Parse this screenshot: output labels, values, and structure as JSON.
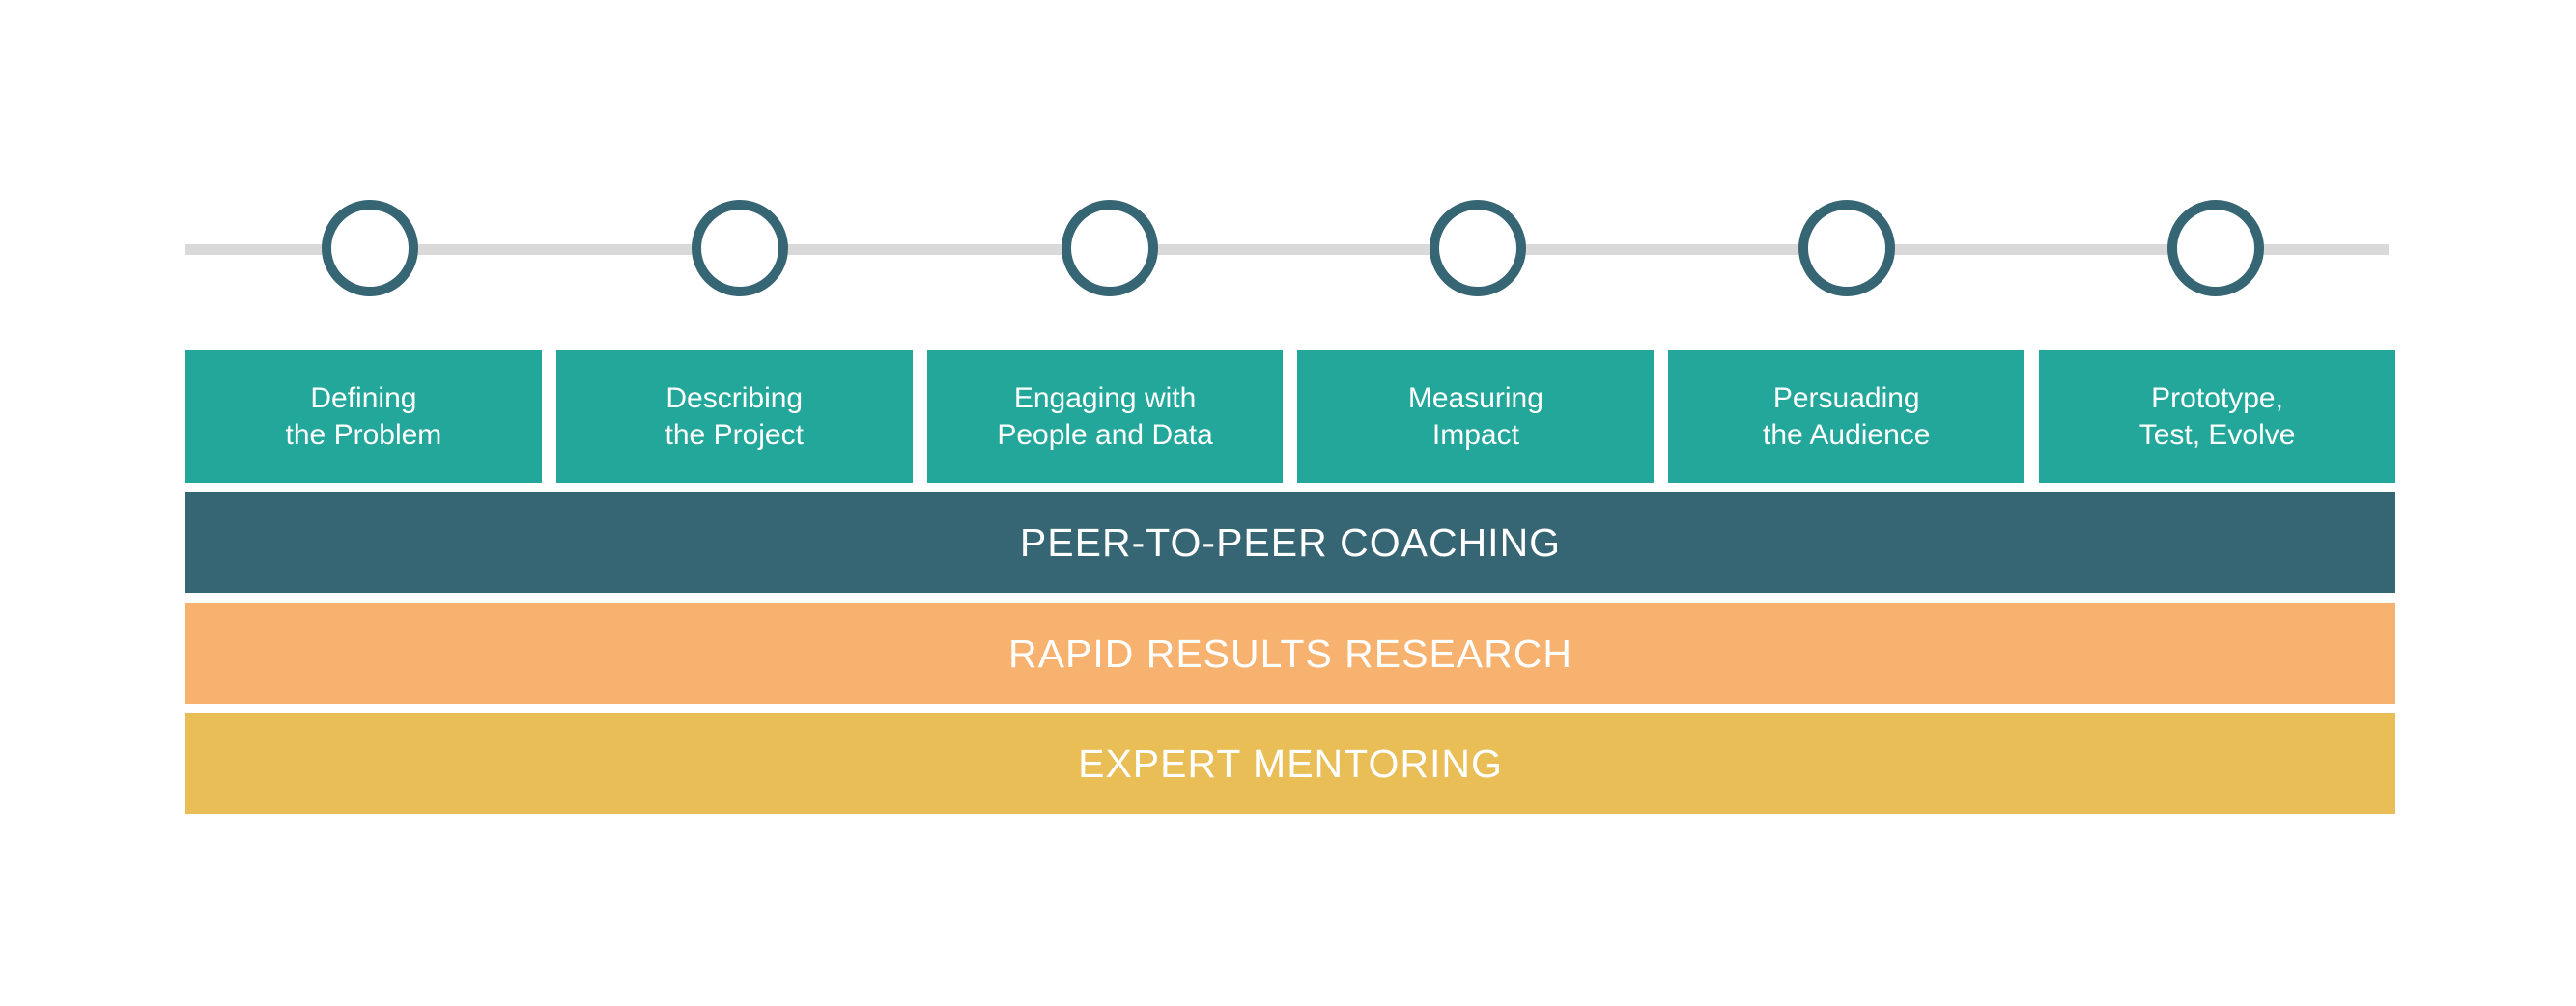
{
  "timeline": {
    "line_color": "#d9d9d9",
    "milestone_color": "#366574",
    "milestone_count": 6
  },
  "steps": [
    {
      "line1": "Defining",
      "line2": "the Problem"
    },
    {
      "line1": "Describing",
      "line2": "the Project"
    },
    {
      "line1": "Engaging with",
      "line2": "People and Data"
    },
    {
      "line1": "Measuring",
      "line2": "Impact"
    },
    {
      "line1": "Persuading",
      "line2": "the Audience"
    },
    {
      "line1": "Prototype,",
      "line2": "Test, Evolve"
    }
  ],
  "step_color": "#23a79b",
  "bands": [
    {
      "label": "PEER-TO-PEER COACHING",
      "color": "#366574"
    },
    {
      "label": "RAPID RESULTS RESEARCH",
      "color": "#f7b26f"
    },
    {
      "label": "EXPERT MENTORING",
      "color": "#e9be57"
    }
  ]
}
